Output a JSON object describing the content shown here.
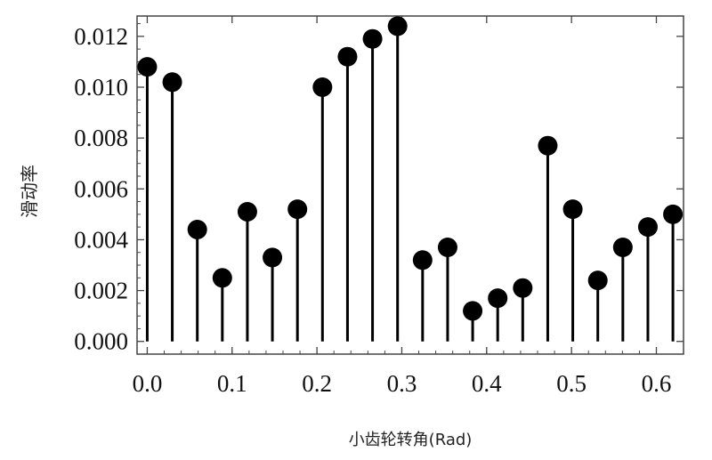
{
  "chart_data": {
    "type": "stem",
    "xlabel": "小齿轮转角(Rad)",
    "ylabel": "滑动率",
    "xlim": [
      -0.012,
      0.632
    ],
    "ylim": [
      -0.0005,
      0.0128
    ],
    "x_ticks": [
      "0.0",
      "0.1",
      "0.2",
      "0.3",
      "0.4",
      "0.5",
      "0.6"
    ],
    "y_ticks": [
      "0.000",
      "0.002",
      "0.004",
      "0.006",
      "0.008",
      "0.010",
      "0.012"
    ],
    "points": [
      {
        "x": 0.0,
        "y": 0.0108
      },
      {
        "x": 0.0295,
        "y": 0.0102
      },
      {
        "x": 0.059,
        "y": 0.0044
      },
      {
        "x": 0.0885,
        "y": 0.0025
      },
      {
        "x": 0.118,
        "y": 0.0051
      },
      {
        "x": 0.1475,
        "y": 0.0033
      },
      {
        "x": 0.177,
        "y": 0.0052
      },
      {
        "x": 0.2065,
        "y": 0.01
      },
      {
        "x": 0.236,
        "y": 0.0112
      },
      {
        "x": 0.2655,
        "y": 0.0119
      },
      {
        "x": 0.295,
        "y": 0.0124
      },
      {
        "x": 0.3245,
        "y": 0.0032
      },
      {
        "x": 0.354,
        "y": 0.0037
      },
      {
        "x": 0.3835,
        "y": 0.0012
      },
      {
        "x": 0.413,
        "y": 0.0017
      },
      {
        "x": 0.4425,
        "y": 0.0021
      },
      {
        "x": 0.472,
        "y": 0.0077
      },
      {
        "x": 0.5015,
        "y": 0.0052
      },
      {
        "x": 0.531,
        "y": 0.0024
      },
      {
        "x": 0.5605,
        "y": 0.0037
      },
      {
        "x": 0.59,
        "y": 0.0045
      },
      {
        "x": 0.6195,
        "y": 0.005
      }
    ],
    "grid": false,
    "frame": true
  }
}
